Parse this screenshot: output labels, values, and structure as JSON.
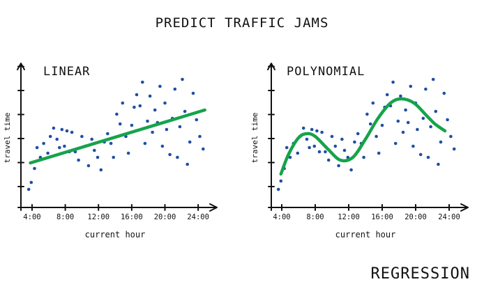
{
  "title": "PREDICT TRAFFIC JAMS",
  "footer": "REGRESSION",
  "colors": {
    "points": "#1f4fa6",
    "fit_line": "#16a34a",
    "ink": "#111111"
  },
  "chart_data": [
    {
      "type": "scatter",
      "title": "LINEAR",
      "xlabel": "current hour",
      "ylabel": "travel time",
      "x_ticks": [
        "4:00",
        "8:00",
        "12:00",
        "16:00",
        "20:00",
        "24:00"
      ],
      "xlim": [
        3.5,
        25.5
      ],
      "ylim": [
        0,
        10
      ],
      "fit": {
        "kind": "linear",
        "x": [
          3.8,
          24.8
        ],
        "y": [
          3.2,
          7.0
        ]
      },
      "points": [
        [
          3.6,
          1.3
        ],
        [
          3.9,
          1.8
        ],
        [
          4.3,
          2.8
        ],
        [
          4.6,
          4.3
        ],
        [
          5.0,
          3.6
        ],
        [
          5.4,
          4.6
        ],
        [
          5.9,
          3.9
        ],
        [
          6.2,
          5.1
        ],
        [
          6.6,
          5.7
        ],
        [
          7.0,
          4.9
        ],
        [
          7.3,
          4.3
        ],
        [
          7.6,
          5.6
        ],
        [
          7.9,
          4.4
        ],
        [
          8.2,
          5.5
        ],
        [
          8.5,
          4.0
        ],
        [
          8.8,
          5.4
        ],
        [
          9.2,
          4.0
        ],
        [
          9.6,
          3.4
        ],
        [
          10.0,
          5.1
        ],
        [
          10.4,
          4.4
        ],
        [
          10.8,
          3.0
        ],
        [
          11.2,
          4.9
        ],
        [
          11.5,
          4.1
        ],
        [
          11.9,
          3.6
        ],
        [
          12.3,
          2.7
        ],
        [
          12.7,
          4.7
        ],
        [
          13.1,
          5.3
        ],
        [
          13.5,
          4.6
        ],
        [
          13.8,
          3.6
        ],
        [
          14.2,
          6.7
        ],
        [
          14.6,
          6.0
        ],
        [
          14.9,
          7.5
        ],
        [
          15.3,
          5.1
        ],
        [
          15.6,
          3.9
        ],
        [
          16.0,
          5.9
        ],
        [
          16.3,
          7.2
        ],
        [
          16.6,
          8.1
        ],
        [
          17.0,
          7.3
        ],
        [
          17.3,
          9.0
        ],
        [
          17.6,
          4.6
        ],
        [
          17.9,
          6.2
        ],
        [
          18.2,
          8.0
        ],
        [
          18.5,
          5.4
        ],
        [
          18.8,
          7.0
        ],
        [
          19.1,
          6.1
        ],
        [
          19.4,
          8.7
        ],
        [
          19.7,
          4.4
        ],
        [
          20.0,
          7.5
        ],
        [
          20.2,
          5.6
        ],
        [
          20.6,
          3.8
        ],
        [
          20.9,
          6.4
        ],
        [
          21.2,
          8.5
        ],
        [
          21.5,
          3.6
        ],
        [
          21.8,
          5.8
        ],
        [
          22.1,
          9.2
        ],
        [
          22.4,
          6.9
        ],
        [
          22.7,
          3.1
        ],
        [
          23.0,
          4.7
        ],
        [
          23.4,
          8.2
        ],
        [
          23.8,
          6.3
        ],
        [
          24.2,
          5.1
        ],
        [
          24.6,
          4.2
        ]
      ]
    },
    {
      "type": "scatter",
      "title": "POLYNOMIAL",
      "xlabel": "current hour",
      "ylabel": "travel time",
      "x_ticks": [
        "4:00",
        "8:00",
        "12:00",
        "16:00",
        "20:00",
        "24:00"
      ],
      "xlim": [
        3.5,
        25.5
      ],
      "ylim": [
        0,
        10
      ],
      "fit": {
        "kind": "polynomial",
        "x": [
          3.9,
          4.8,
          6.0,
          7.0,
          8.0,
          9.5,
          11.0,
          12.5,
          14.0,
          15.5,
          17.0,
          18.3,
          19.8,
          21.3,
          22.3,
          23.5
        ],
        "y": [
          2.4,
          3.8,
          5.0,
          5.3,
          5.1,
          4.2,
          3.4,
          3.6,
          4.9,
          6.4,
          7.5,
          7.8,
          7.5,
          6.6,
          6.0,
          5.5
        ]
      },
      "points": [
        [
          3.6,
          1.3
        ],
        [
          3.9,
          1.9
        ],
        [
          4.3,
          2.8
        ],
        [
          4.6,
          4.3
        ],
        [
          5.0,
          3.6
        ],
        [
          5.4,
          4.6
        ],
        [
          5.9,
          3.9
        ],
        [
          6.2,
          5.1
        ],
        [
          6.6,
          5.7
        ],
        [
          7.0,
          4.9
        ],
        [
          7.3,
          4.3
        ],
        [
          7.6,
          5.6
        ],
        [
          7.9,
          4.4
        ],
        [
          8.2,
          5.5
        ],
        [
          8.5,
          4.0
        ],
        [
          8.8,
          5.4
        ],
        [
          9.2,
          4.0
        ],
        [
          9.6,
          3.4
        ],
        [
          10.0,
          5.1
        ],
        [
          10.4,
          4.4
        ],
        [
          10.8,
          3.0
        ],
        [
          11.2,
          4.9
        ],
        [
          11.5,
          4.1
        ],
        [
          11.9,
          3.6
        ],
        [
          12.3,
          2.7
        ],
        [
          12.7,
          4.7
        ],
        [
          13.1,
          5.3
        ],
        [
          13.5,
          4.6
        ],
        [
          13.8,
          3.6
        ],
        [
          14.2,
          6.7
        ],
        [
          14.6,
          6.0
        ],
        [
          14.9,
          7.5
        ],
        [
          15.3,
          5.1
        ],
        [
          15.6,
          3.9
        ],
        [
          16.0,
          5.9
        ],
        [
          16.3,
          7.2
        ],
        [
          16.6,
          8.1
        ],
        [
          17.0,
          7.3
        ],
        [
          17.3,
          9.0
        ],
        [
          17.6,
          4.6
        ],
        [
          17.9,
          6.2
        ],
        [
          18.2,
          8.0
        ],
        [
          18.5,
          5.4
        ],
        [
          18.8,
          7.0
        ],
        [
          19.1,
          6.1
        ],
        [
          19.4,
          8.7
        ],
        [
          19.7,
          4.4
        ],
        [
          20.0,
          7.5
        ],
        [
          20.2,
          5.6
        ],
        [
          20.6,
          3.8
        ],
        [
          20.9,
          6.4
        ],
        [
          21.2,
          8.5
        ],
        [
          21.5,
          3.6
        ],
        [
          21.8,
          5.8
        ],
        [
          22.1,
          9.2
        ],
        [
          22.4,
          6.9
        ],
        [
          22.7,
          3.1
        ],
        [
          23.0,
          4.7
        ],
        [
          23.4,
          8.2
        ],
        [
          23.8,
          6.3
        ],
        [
          24.2,
          5.1
        ],
        [
          24.6,
          4.2
        ]
      ]
    }
  ]
}
